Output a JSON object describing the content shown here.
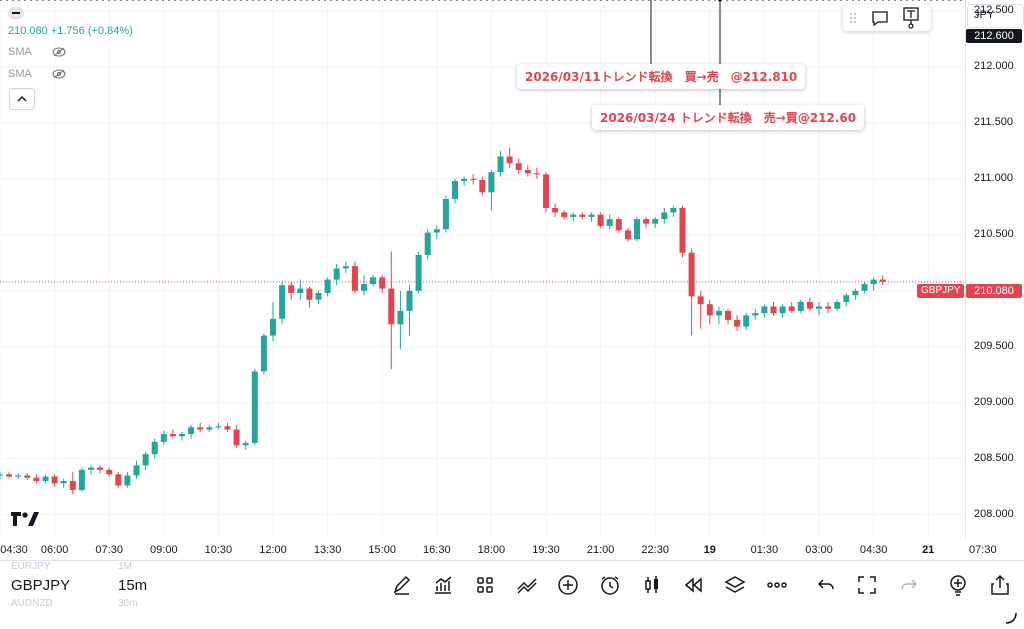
{
  "currency": {
    "label": "JPY"
  },
  "legend": {
    "value_line": "210.080 +1.756 (+0.84%)",
    "sma1": "SMA",
    "sma2": "SMA"
  },
  "price_labels": {
    "top_line": "212.600",
    "last": "210.080",
    "symbol_tag": "GBPJPY"
  },
  "annotations": [
    {
      "text": "2026/03/11トレンド転換　買→売　@212.810"
    },
    {
      "text": "2026/03/24 トレンド転換　売→買@212.60"
    }
  ],
  "bottom": {
    "symbol": "GBPJPY",
    "timeframe": "15m",
    "ghost_symbol_above": "EURJPY",
    "ghost_symbol_below": "AUDNZD",
    "ghost_tf_above": "1M",
    "ghost_tf_below": "30m"
  },
  "toolbar_icons": [
    "pen-icon",
    "indicators-icon",
    "templates-icon",
    "strategy-icon",
    "add-icon",
    "alert-clock-icon",
    "candle-type-icon",
    "replay-icon",
    "layers-icon",
    "more-icon",
    "undo-icon",
    "fullscreen-icon",
    "redo-icon",
    "bulb-plus-icon",
    "share-icon"
  ],
  "colors": {
    "up": "#26a69a",
    "down": "#e0464f",
    "annotation": "#e0464f"
  },
  "chart_data": {
    "type": "candlestick",
    "symbol": "GBPJPY",
    "interval": "15m",
    "ylim": [
      207.8,
      212.75
    ],
    "yticks": [
      "212.500",
      "212.000",
      "211.500",
      "211.000",
      "210.500",
      "210.000",
      "209.500",
      "209.000",
      "208.500",
      "208.000"
    ],
    "ytick_values": [
      212.5,
      212.0,
      211.5,
      211.0,
      210.5,
      210.0,
      209.5,
      209.0,
      208.5,
      208.0
    ],
    "xticks": [
      {
        "label": "04:30",
        "i": 0
      },
      {
        "label": "06:00",
        "i": 6
      },
      {
        "label": "07:30",
        "i": 12
      },
      {
        "label": "09:00",
        "i": 18
      },
      {
        "label": "10:30",
        "i": 24
      },
      {
        "label": "12:00",
        "i": 30
      },
      {
        "label": "13:30",
        "i": 36
      },
      {
        "label": "15:00",
        "i": 42
      },
      {
        "label": "16:30",
        "i": 48
      },
      {
        "label": "18:00",
        "i": 54
      },
      {
        "label": "19:30",
        "i": 60
      },
      {
        "label": "21:00",
        "i": 66
      },
      {
        "label": "22:30",
        "i": 72
      },
      {
        "label": "19",
        "i": 78,
        "bold": true
      },
      {
        "label": "01:30",
        "i": 84
      },
      {
        "label": "03:00",
        "i": 90
      },
      {
        "label": "04:30",
        "i": 96
      },
      {
        "label": "21",
        "i": 102,
        "bold": true
      },
      {
        "label": "07:30",
        "i": 108
      }
    ],
    "horizontal_lines": [
      212.81,
      212.6
    ],
    "last_price": 210.08,
    "candles": [
      [
        208.35,
        208.38,
        208.32,
        208.36
      ],
      [
        208.36,
        208.38,
        208.33,
        208.34
      ],
      [
        208.34,
        208.37,
        208.32,
        208.35
      ],
      [
        208.35,
        208.37,
        208.31,
        208.33
      ],
      [
        208.33,
        208.36,
        208.28,
        208.3
      ],
      [
        208.3,
        208.36,
        208.28,
        208.34
      ],
      [
        208.34,
        208.36,
        208.25,
        208.28
      ],
      [
        208.28,
        208.32,
        208.24,
        208.3
      ],
      [
        208.3,
        208.38,
        208.18,
        208.22
      ],
      [
        208.22,
        208.42,
        208.2,
        208.4
      ],
      [
        208.4,
        208.44,
        208.36,
        208.42
      ],
      [
        208.42,
        208.44,
        208.37,
        208.4
      ],
      [
        208.4,
        208.42,
        208.34,
        208.36
      ],
      [
        208.36,
        208.38,
        208.24,
        208.26
      ],
      [
        208.26,
        208.38,
        208.24,
        208.35
      ],
      [
        208.35,
        208.48,
        208.32,
        208.44
      ],
      [
        208.44,
        208.56,
        208.4,
        208.54
      ],
      [
        208.54,
        208.68,
        208.5,
        208.65
      ],
      [
        208.65,
        208.75,
        208.62,
        208.72
      ],
      [
        208.72,
        208.76,
        208.68,
        208.7
      ],
      [
        208.7,
        208.74,
        208.66,
        208.72
      ],
      [
        208.72,
        208.8,
        208.68,
        208.78
      ],
      [
        208.78,
        208.82,
        208.74,
        208.76
      ],
      [
        208.76,
        208.8,
        208.74,
        208.78
      ],
      [
        208.78,
        208.82,
        208.76,
        208.79
      ],
      [
        208.79,
        208.82,
        208.74,
        208.76
      ],
      [
        208.76,
        208.8,
        208.6,
        208.62
      ],
      [
        208.62,
        208.66,
        208.58,
        208.64
      ],
      [
        208.64,
        209.3,
        208.62,
        209.28
      ],
      [
        209.28,
        209.62,
        209.25,
        209.6
      ],
      [
        209.6,
        209.9,
        209.55,
        209.75
      ],
      [
        209.75,
        210.08,
        209.7,
        210.05
      ],
      [
        210.05,
        210.08,
        209.92,
        209.98
      ],
      [
        209.98,
        210.1,
        209.92,
        210.02
      ],
      [
        210.02,
        210.04,
        209.85,
        209.92
      ],
      [
        209.92,
        210.0,
        209.88,
        209.98
      ],
      [
        209.98,
        210.12,
        209.95,
        210.1
      ],
      [
        210.1,
        210.24,
        210.05,
        210.2
      ],
      [
        210.2,
        210.26,
        210.16,
        210.22
      ],
      [
        210.22,
        210.26,
        209.98,
        210.0
      ],
      [
        210.0,
        210.14,
        209.96,
        210.06
      ],
      [
        210.06,
        210.14,
        210.04,
        210.12
      ],
      [
        210.12,
        210.14,
        209.98,
        210.02
      ],
      [
        210.02,
        210.35,
        209.3,
        209.7
      ],
      [
        209.7,
        210.0,
        209.48,
        209.82
      ],
      [
        209.82,
        210.05,
        209.6,
        210.0
      ],
      [
        210.0,
        210.35,
        209.98,
        210.32
      ],
      [
        210.32,
        210.55,
        210.28,
        210.52
      ],
      [
        210.52,
        210.58,
        210.46,
        210.55
      ],
      [
        210.55,
        210.85,
        210.52,
        210.82
      ],
      [
        210.82,
        211.0,
        210.78,
        210.98
      ],
      [
        210.98,
        211.02,
        210.94,
        211.0
      ],
      [
        211.0,
        211.04,
        210.95,
        210.99
      ],
      [
        210.99,
        211.02,
        210.85,
        210.88
      ],
      [
        210.88,
        211.08,
        210.72,
        211.06
      ],
      [
        211.06,
        211.25,
        211.02,
        211.2
      ],
      [
        211.2,
        211.28,
        211.1,
        211.14
      ],
      [
        211.14,
        211.18,
        211.04,
        211.08
      ],
      [
        211.08,
        211.12,
        211.02,
        211.05
      ],
      [
        211.05,
        211.1,
        211.0,
        211.04
      ],
      [
        211.04,
        211.06,
        210.7,
        210.74
      ],
      [
        210.74,
        210.78,
        210.66,
        210.7
      ],
      [
        210.7,
        210.72,
        210.64,
        210.66
      ],
      [
        210.66,
        210.7,
        210.62,
        210.68
      ],
      [
        210.68,
        210.7,
        210.64,
        210.66
      ],
      [
        210.66,
        210.7,
        210.62,
        210.68
      ],
      [
        210.68,
        210.7,
        210.56,
        210.58
      ],
      [
        210.58,
        210.68,
        210.55,
        210.64
      ],
      [
        210.64,
        210.66,
        210.52,
        210.54
      ],
      [
        210.54,
        210.56,
        210.44,
        210.46
      ],
      [
        210.46,
        210.66,
        210.44,
        210.64
      ],
      [
        210.64,
        210.66,
        210.56,
        210.6
      ],
      [
        210.6,
        210.66,
        210.56,
        210.64
      ],
      [
        210.64,
        210.74,
        210.6,
        210.7
      ],
      [
        210.7,
        210.76,
        210.66,
        210.74
      ],
      [
        210.74,
        210.76,
        210.3,
        210.34
      ],
      [
        210.34,
        210.38,
        209.6,
        209.95
      ],
      [
        209.95,
        210.0,
        209.66,
        209.88
      ],
      [
        209.88,
        209.92,
        209.7,
        209.78
      ],
      [
        209.78,
        209.86,
        209.7,
        209.82
      ],
      [
        209.82,
        209.84,
        209.7,
        209.74
      ],
      [
        209.74,
        209.78,
        209.64,
        209.68
      ],
      [
        209.68,
        209.8,
        209.65,
        209.78
      ],
      [
        209.78,
        209.84,
        209.74,
        209.8
      ],
      [
        209.8,
        209.88,
        209.76,
        209.86
      ],
      [
        209.86,
        209.9,
        209.78,
        209.8
      ],
      [
        209.8,
        209.88,
        209.76,
        209.86
      ],
      [
        209.86,
        209.9,
        209.8,
        209.82
      ],
      [
        209.82,
        209.92,
        209.8,
        209.9
      ],
      [
        209.9,
        209.94,
        209.82,
        209.84
      ],
      [
        209.84,
        209.9,
        209.78,
        209.86
      ],
      [
        209.86,
        209.9,
        209.8,
        209.84
      ],
      [
        209.84,
        209.92,
        209.82,
        209.9
      ],
      [
        209.9,
        209.98,
        209.86,
        209.96
      ],
      [
        209.96,
        210.02,
        209.92,
        210.0
      ],
      [
        210.0,
        210.08,
        209.98,
        210.06
      ],
      [
        210.06,
        210.12,
        210.0,
        210.1
      ],
      [
        210.1,
        210.14,
        210.05,
        210.08
      ]
    ]
  }
}
